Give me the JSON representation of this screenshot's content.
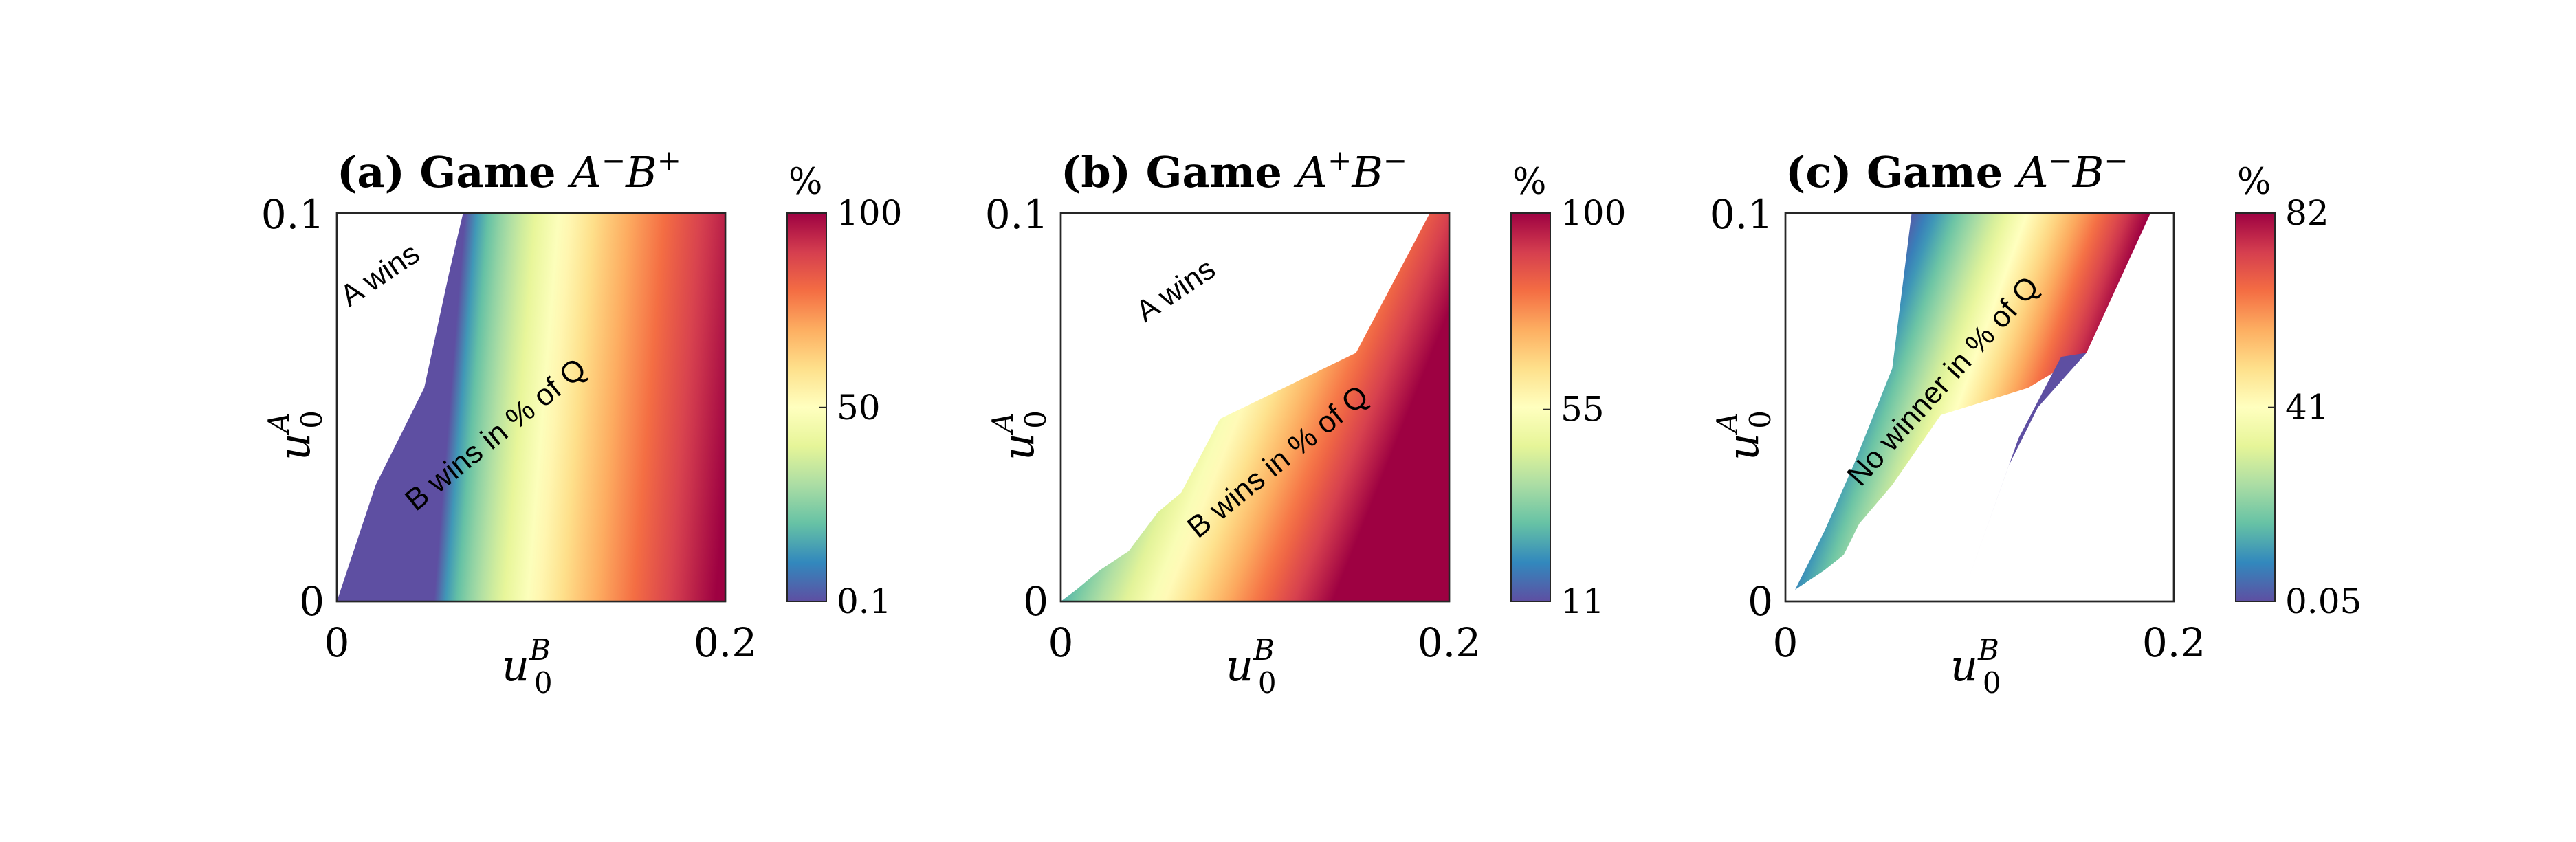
{
  "figure": {
    "background": "#ffffff"
  },
  "colormap": [
    "#5e4fa2",
    "#3288bd",
    "#66c2a5",
    "#abdda4",
    "#e6f598",
    "#ffffbf",
    "#fee08b",
    "#fdae61",
    "#f46d43",
    "#d53e4f",
    "#9e0142"
  ],
  "chart_data": [
    {
      "type": "heatmap",
      "title": {
        "prefix": "(a) Game ",
        "player1": "A",
        "sup1": "−",
        "player2": "B",
        "sup2": "+"
      },
      "xlabel": {
        "base": "u",
        "sub": "0",
        "sup": "B"
      },
      "ylabel": {
        "base": "u",
        "sub": "0",
        "sup": "A"
      },
      "xlim": [
        0,
        0.2
      ],
      "ylim": [
        0,
        0.1
      ],
      "xtick_labels": [
        "0",
        "0.2"
      ],
      "ytick_labels": [
        "0",
        "0.1"
      ],
      "colorbar": {
        "label": "%",
        "min": 0.1,
        "max": 100,
        "tick_labels": [
          "0.1",
          "50",
          "100"
        ],
        "tick_values": [
          0.1,
          50,
          100
        ]
      },
      "annotations": [
        {
          "text": "A wins",
          "x": 0.025,
          "y": 0.082,
          "angle": -34
        },
        {
          "text": "B wins in % of Q",
          "x": 0.085,
          "y": 0.041,
          "angle": -39
        }
      ],
      "colored_region": [
        [
          0,
          0
        ],
        [
          0.2,
          0
        ],
        [
          0.2,
          0.1
        ],
        [
          0.065,
          0.1
        ],
        [
          0.058,
          0.085
        ],
        [
          0.045,
          0.055
        ],
        [
          0.035,
          0.045
        ],
        [
          0.02,
          0.03
        ],
        [
          0.01,
          0.015
        ]
      ],
      "value_field": {
        "zero_line": [
          [
            0.05,
            0.0
          ],
          [
            0.066,
            0.1
          ]
        ],
        "full_line": [
          [
            0.195,
            0.0
          ],
          [
            0.195,
            0.1
          ]
        ],
        "gamma": 0.65
      }
    },
    {
      "type": "heatmap",
      "title": {
        "prefix": "(b) Game ",
        "player1": "A",
        "sup1": "+",
        "player2": "B",
        "sup2": "−"
      },
      "xlabel": {
        "base": "u",
        "sub": "0",
        "sup": "B"
      },
      "ylabel": {
        "base": "u",
        "sub": "0",
        "sup": "A"
      },
      "xlim": [
        0,
        0.2
      ],
      "ylim": [
        0,
        0.1
      ],
      "xtick_labels": [
        "0",
        "0.2"
      ],
      "ytick_labels": [
        "0",
        "0.1"
      ],
      "colorbar": {
        "label": "%",
        "min": 11,
        "max": 100,
        "tick_labels": [
          "11",
          "55",
          "100"
        ],
        "tick_values": [
          11,
          55,
          100
        ]
      },
      "annotations": [
        {
          "text": "A wins",
          "x": 0.062,
          "y": 0.078,
          "angle": -34
        },
        {
          "text": "B wins in % of Q",
          "x": 0.115,
          "y": 0.034,
          "angle": -39
        }
      ],
      "colored_region": [
        [
          0,
          0
        ],
        [
          0.2,
          0
        ],
        [
          0.2,
          0.1
        ],
        [
          0.19,
          0.1
        ],
        [
          0.152,
          0.064
        ],
        [
          0.082,
          0.047
        ],
        [
          0.062,
          0.028
        ],
        [
          0.05,
          0.023
        ],
        [
          0.035,
          0.013
        ],
        [
          0.02,
          0.008
        ],
        [
          0.008,
          0.003
        ]
      ],
      "value_field": {
        "zero_line": [
          [
            -0.02,
            0.0
          ],
          [
            0.06,
            0.1
          ]
        ],
        "full_line": [
          [
            0.14,
            0.0
          ],
          [
            0.2,
            0.07
          ]
        ],
        "gamma": 0.85
      }
    },
    {
      "type": "heatmap",
      "title": {
        "prefix": "(c) Game ",
        "player1": "A",
        "sup1": "−",
        "player2": "B",
        "sup2": "−"
      },
      "xlabel": {
        "base": "u",
        "sub": "0",
        "sup": "B"
      },
      "ylabel": {
        "base": "u",
        "sub": "0",
        "sup": "A"
      },
      "xlim": [
        0,
        0.2
      ],
      "ylim": [
        0,
        0.1
      ],
      "xtick_labels": [
        "0",
        "0.2"
      ],
      "ytick_labels": [
        "0",
        "0.1"
      ],
      "colorbar": {
        "label": "%",
        "min": 0.05,
        "max": 82,
        "tick_labels": [
          "0.05",
          "41",
          "82"
        ],
        "tick_values": [
          0.05,
          41,
          82
        ]
      },
      "annotations": [
        {
          "text": "No winner in % of Q",
          "x": 0.085,
          "y": 0.055,
          "angle": -48
        }
      ],
      "colored_region": [
        [
          0.005,
          0.003
        ],
        [
          0.02,
          0.018
        ],
        [
          0.035,
          0.035
        ],
        [
          0.055,
          0.06
        ],
        [
          0.065,
          0.1
        ],
        [
          0.188,
          0.1
        ],
        [
          0.155,
          0.064
        ],
        [
          0.125,
          0.055
        ],
        [
          0.08,
          0.048
        ],
        [
          0.055,
          0.03
        ],
        [
          0.038,
          0.02
        ],
        [
          0.03,
          0.012
        ],
        [
          0.02,
          0.008
        ]
      ],
      "value_field": {
        "zero_line": [
          [
            -0.01,
            0.0
          ],
          [
            0.062,
            0.1
          ]
        ],
        "full_line": [
          [
            0.115,
            0.0
          ],
          [
            0.14,
            0.1
          ]
        ],
        "gamma": 1.0
      },
      "low_region": [
        [
          0.093,
          0.004
        ],
        [
          0.12,
          0.042
        ],
        [
          0.142,
          0.063
        ],
        [
          0.155,
          0.064
        ],
        [
          0.13,
          0.05
        ],
        [
          0.115,
          0.035
        ]
      ]
    }
  ]
}
